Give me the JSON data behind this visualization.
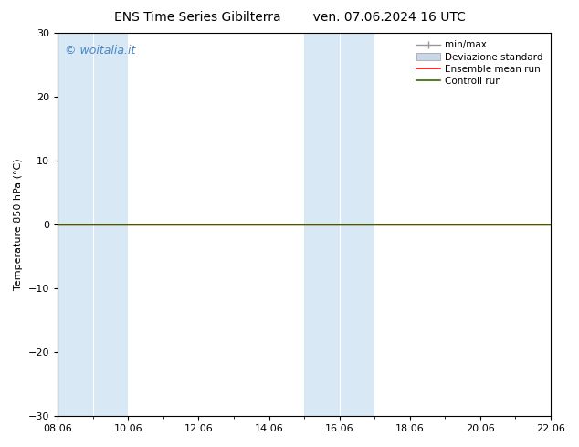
{
  "title_left": "ENS Time Series Gibilterra",
  "title_right": "ven. 07.06.2024 16 UTC",
  "ylabel": "Temperature 850 hPa (°C)",
  "ylim": [
    -30,
    30
  ],
  "yticks": [
    -30,
    -20,
    -10,
    0,
    10,
    20,
    30
  ],
  "xtick_labels": [
    "08.06",
    "10.06",
    "12.06",
    "14.06",
    "16.06",
    "18.06",
    "20.06",
    "22.06"
  ],
  "watermark": "© woitalia.it",
  "watermark_color": "#4488cc",
  "bg_color": "#ffffff",
  "plot_bg_color": "#ffffff",
  "band_color": "#d8e8f5",
  "zero_line_color": "#000000",
  "ensemble_mean_color": "#ff0000",
  "control_run_color": "#336600",
  "legend_labels": [
    "min/max",
    "Deviazione standard",
    "Ensemble mean run",
    "Controll run"
  ],
  "font_size_title": 10,
  "font_size_legend": 7.5,
  "font_size_ticks": 8,
  "font_size_ylabel": 8,
  "font_size_watermark": 9,
  "num_days": 15,
  "day_start": 8,
  "day_step": 1,
  "band_columns": [
    {
      "start": 0,
      "end": 1,
      "light": false
    },
    {
      "start": 1,
      "end": 2,
      "light": true
    },
    {
      "start": 2,
      "end": 3,
      "light": false
    },
    {
      "start": 3,
      "end": 4,
      "light": true
    },
    {
      "start": 4,
      "end": 5,
      "light": false
    },
    {
      "start": 5,
      "end": 6,
      "light": true
    },
    {
      "start": 6,
      "end": 7,
      "light": false
    },
    {
      "start": 7,
      "end": 8,
      "light": true
    },
    {
      "start": 8,
      "end": 9,
      "light": false
    },
    {
      "start": 9,
      "end": 10,
      "light": true
    },
    {
      "start": 10,
      "end": 11,
      "light": false
    },
    {
      "start": 11,
      "end": 12,
      "light": true
    },
    {
      "start": 12,
      "end": 13,
      "light": false
    },
    {
      "start": 13,
      "end": 14,
      "light": true
    }
  ]
}
